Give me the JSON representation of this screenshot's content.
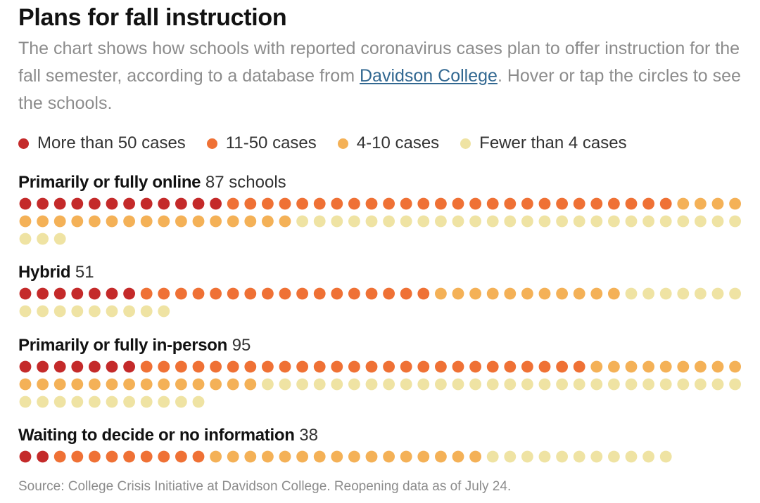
{
  "header": {
    "title": "Plans for fall instruction",
    "subtitle_before": "The chart shows how schools with reported coronavirus cases plan to offer instruction for the fall semester, according to a database from ",
    "subtitle_link": "Davidson College",
    "subtitle_after": ". Hover or tap the circles to see the schools."
  },
  "colors": {
    "gt50": "#c42a2a",
    "c11_50": "#ef7135",
    "c4_10": "#f4b157",
    "lt4": "#efe3a3"
  },
  "chart_data": {
    "type": "dot-matrix",
    "title": "Plans for fall instruction",
    "unit": "school",
    "legend": [
      {
        "key": "gt50",
        "label": "More than 50 cases"
      },
      {
        "key": "c11_50",
        "label": "11-50 cases"
      },
      {
        "key": "c4_10",
        "label": "4-10 cases"
      },
      {
        "key": "lt4",
        "label": "Fewer than 4 cases"
      }
    ],
    "groups": [
      {
        "name": "Primarily or fully online",
        "count_label": "87 schools",
        "total": 87,
        "counts": {
          "gt50": 12,
          "c11_50": 26,
          "c4_10": 20,
          "lt4": 29
        }
      },
      {
        "name": "Hybrid",
        "count_label": "51",
        "total": 51,
        "counts": {
          "gt50": 7,
          "c11_50": 17,
          "c4_10": 11,
          "lt4": 16
        }
      },
      {
        "name": "Primarily or fully in-person",
        "count_label": "95",
        "total": 95,
        "counts": {
          "gt50": 7,
          "c11_50": 26,
          "c4_10": 23,
          "lt4": 39
        }
      },
      {
        "name": "Waiting to decide or no information",
        "count_label": "38",
        "total": 38,
        "counts": {
          "gt50": 2,
          "c11_50": 9,
          "c4_10": 16,
          "lt4": 11
        }
      }
    ]
  },
  "footer": {
    "source": "Source: College Crisis Initiative at Davidson College. Reopening data as of July 24."
  }
}
